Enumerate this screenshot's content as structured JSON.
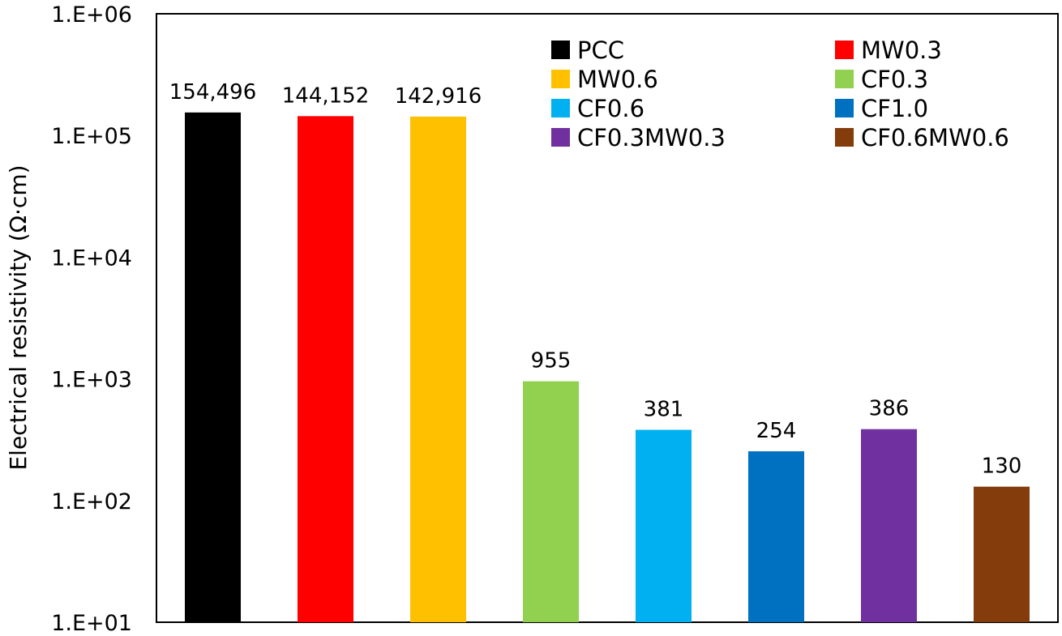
{
  "chart_data": {
    "type": "bar",
    "title": "",
    "xlabel": "",
    "ylabel": "Electrical resistivity (Ω·cm)",
    "yscale": "log",
    "ylim": [
      10,
      1000000
    ],
    "yticks": [
      {
        "value": 10,
        "label": "1.E+01"
      },
      {
        "value": 100,
        "label": "1.E+02"
      },
      {
        "value": 1000,
        "label": "1.E+03"
      },
      {
        "value": 10000,
        "label": "1.E+04"
      },
      {
        "value": 100000,
        "label": "1.E+05"
      },
      {
        "value": 1000000,
        "label": "1.E+06"
      }
    ],
    "grid": false,
    "legend_position": "top-right",
    "categories": [
      "PCC",
      "MW0.3",
      "MW0.6",
      "CF0.3",
      "CF0.6",
      "CF1.0",
      "CF0.3MW0.3",
      "CF0.6MW0.6"
    ],
    "values": [
      154496,
      144152,
      142916,
      955,
      381,
      254,
      386,
      130
    ],
    "data_labels": [
      "154,496",
      "144,152",
      "142,916",
      "955",
      "381",
      "254",
      "386",
      "130"
    ],
    "colors": [
      "#000000",
      "#FF0000",
      "#FFC000",
      "#92D050",
      "#00B0F0",
      "#0070C0",
      "#7030A0",
      "#843C0C"
    ]
  }
}
